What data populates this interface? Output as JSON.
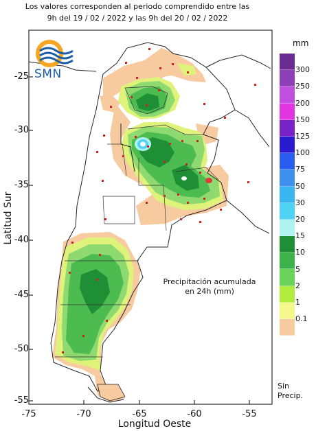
{
  "header": {
    "line1": "Los valores corresponden al periodo comprendido entre las",
    "line2": "9h del 19 / 02 / 2022  y las 9h del 20 / 02 / 2022"
  },
  "logo": {
    "text": "SMN",
    "icon": "smn-sun-waves-logo"
  },
  "axes": {
    "xlabel": "Longitud Oeste",
    "ylabel": "Latitud Sur",
    "xticks": [
      "-75",
      "-70",
      "-65",
      "-60",
      "-55"
    ],
    "yticks": [
      "-25",
      "-30",
      "-35",
      "-40",
      "-45",
      "-50",
      "-55"
    ]
  },
  "annotation": {
    "line1": "Precipitación acumulada",
    "line2": "en 24h (mm)"
  },
  "legend": {
    "unit": "mm",
    "no_precip_line1": "Sin",
    "no_precip_line2": "Precip.",
    "items": [
      {
        "label": "300",
        "color": "#6a2c91"
      },
      {
        "label": "250",
        "color": "#8e3fb8"
      },
      {
        "label": "200",
        "color": "#c04fe0"
      },
      {
        "label": "150",
        "color": "#e235e2"
      },
      {
        "label": "125",
        "color": "#7a22c9"
      },
      {
        "label": "100",
        "color": "#2a1ad0"
      },
      {
        "label": "75",
        "color": "#2a5ef0"
      },
      {
        "label": "50",
        "color": "#3f8fef"
      },
      {
        "label": "30",
        "color": "#39b6f2"
      },
      {
        "label": "20",
        "color": "#4fd3f5"
      },
      {
        "label": "15",
        "color": "#aef3f0"
      },
      {
        "label": "10",
        "color": "#1e8f35"
      },
      {
        "label": "5",
        "color": "#3cb34a"
      },
      {
        "label": "2",
        "color": "#6ad35a"
      },
      {
        "label": "1",
        "color": "#b2ec3c"
      },
      {
        "label": "0.1",
        "color": "#f4f78a"
      },
      {
        "label": "",
        "color": "#f8caa0"
      }
    ]
  },
  "colors": {
    "light": "#f8caa0",
    "green_light": "#8ed970",
    "green": "#4cbb50",
    "green_dark": "#1e8f35",
    "yellow": "#dff27a",
    "station": "#d22020"
  }
}
